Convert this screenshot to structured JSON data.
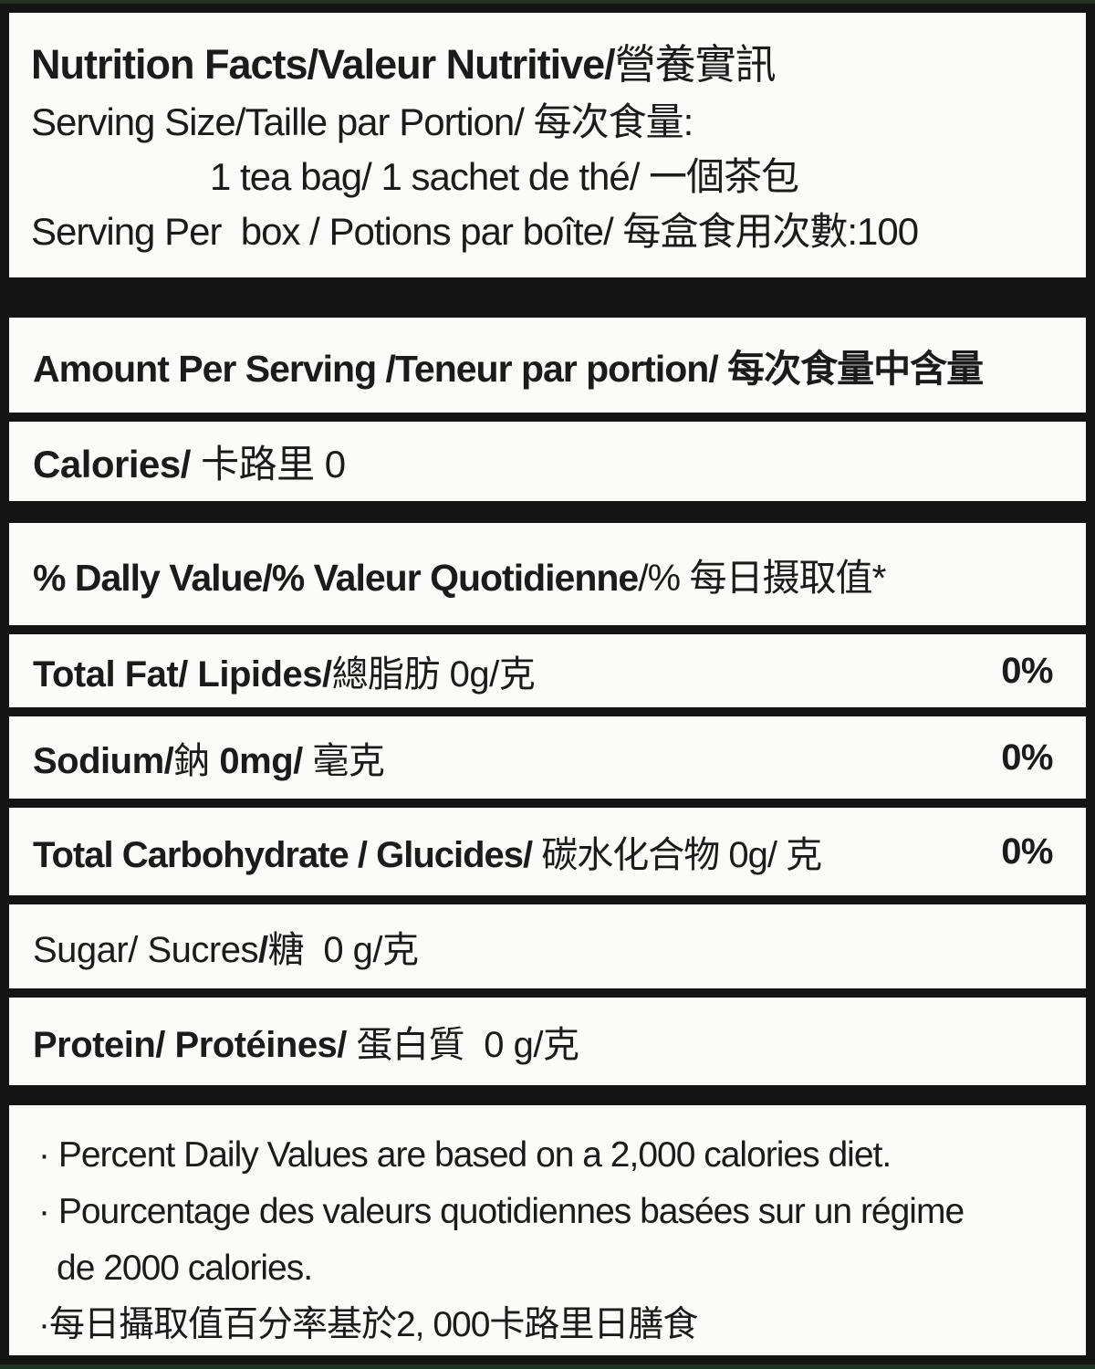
{
  "colors": {
    "frame": "#141414",
    "label_bg": "#fbfbf9",
    "edge_green": "#1e3621",
    "text": "#1b1b1b"
  },
  "label": {
    "header": {
      "title_parts": [
        {
          "t": "Nutrition Facts/Valeur Nutritive/",
          "b": true
        },
        {
          "t": "營養實訊",
          "b": false
        }
      ],
      "serving_size": "Serving Size/Taille par Portion/ 每次食量:",
      "serving_size_value": "1 tea bag/ 1 sachet de thé/ 一個茶包",
      "servings_per_box": "Serving Per  box / Potions par boîte/ 每盒食用次數:100"
    },
    "amount_per_serving": "Amount Per Serving /Teneur par portion/ 每次食量中含量",
    "calories_parts": [
      {
        "t": "Calories/",
        "b": true
      },
      {
        "t": " 卡路里 0",
        "b": false
      }
    ],
    "daily_value_parts": [
      {
        "t": "% Dally Value/% Valeur Quotidienne",
        "b": true
      },
      {
        "t": "/% 每日摄取值*",
        "b": false
      }
    ],
    "rows": [
      {
        "name": "total-fat",
        "parts": [
          {
            "t": "Total Fat/ Lipides/",
            "b": true
          },
          {
            "t": "總脂肪 0g/克",
            "b": false
          }
        ],
        "pct": "0%"
      },
      {
        "name": "sodium",
        "parts": [
          {
            "t": "Sodium/",
            "b": true
          },
          {
            "t": "鈉 ",
            "b": false
          },
          {
            "t": "0mg/",
            "b": true
          },
          {
            "t": " 毫克",
            "b": false
          }
        ],
        "pct": "0%"
      },
      {
        "name": "total-carbohydrate",
        "parts": [
          {
            "t": "Total Carbohydrate / Glucides/",
            "b": true
          },
          {
            "t": " 碳水化合物 0g/ 克",
            "b": false
          }
        ],
        "pct": "0%"
      },
      {
        "name": "sugar",
        "parts": [
          {
            "t": "Sugar/ Sucres",
            "b": false
          },
          {
            "t": "/",
            "b": true
          },
          {
            "t": "糖  0 g/克",
            "b": false
          }
        ],
        "pct": ""
      },
      {
        "name": "protein",
        "parts": [
          {
            "t": "Protein/ Protéines/",
            "b": true
          },
          {
            "t": " 蛋白質  0 g/克",
            "b": false
          }
        ],
        "pct": ""
      }
    ],
    "footnotes": [
      "· Percent Daily Values are based on a 2,000 calories diet.",
      "· Pourcentage des valeurs quotidiennes basées sur un régime",
      "de 2000 calories.",
      "·每日攝取值百分率基於2, 000卡路里日膳食"
    ]
  }
}
